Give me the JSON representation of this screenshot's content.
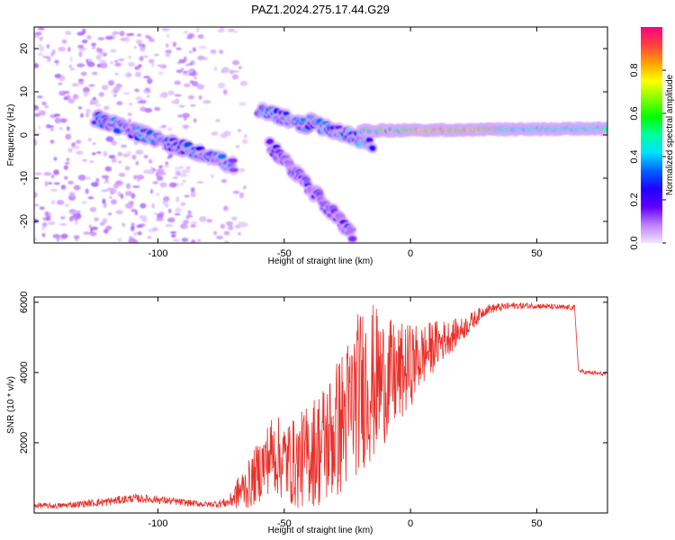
{
  "title": "PAZ1.2024.275.17.44.G29",
  "colors": {
    "snr_line": "#e8302a",
    "frame": "#000000",
    "colorbar_stops": [
      "#ff0080",
      "#ff4040",
      "#ffa000",
      "#ffff00",
      "#80ff00",
      "#00ff00",
      "#00ffa0",
      "#00e0ff",
      "#0060ff",
      "#2000ff",
      "#6000ff",
      "#c080ff",
      "#f0e6ff"
    ]
  },
  "chart_data": [
    {
      "type": "heatmap",
      "xlabel": "Height of straight line (km)",
      "ylabel": "Frequency (Hz)",
      "xlim": [
        -149,
        78
      ],
      "ylim": [
        -25,
        25
      ],
      "xticks": [
        -100,
        -50,
        0,
        50
      ],
      "yticks": [
        20,
        10,
        0,
        -10,
        -20
      ],
      "colorbar": {
        "label": "Normalized spectral amplitude",
        "range": [
          0,
          1
        ],
        "ticks": [
          "0.0",
          "0.2",
          "0.4",
          "0.6",
          "0.8"
        ],
        "tick_values": [
          0,
          0.2,
          0.4,
          0.6,
          0.8
        ]
      },
      "features": [
        {
          "kind": "band",
          "x_start": -125,
          "x_end": -70,
          "f_start": 4,
          "f_end": -7,
          "amplitude": 0.3
        },
        {
          "kind": "band",
          "x_start": -60,
          "x_end": -40,
          "f_start": 6,
          "f_end": 2,
          "amplitude": 0.3
        },
        {
          "kind": "band",
          "x_start": -56,
          "x_end": -23,
          "f_start": -2,
          "f_end": -23,
          "amplitude": 0.2
        },
        {
          "kind": "band",
          "x_start": -40,
          "x_end": -15,
          "f_start": 3,
          "f_end": -2,
          "amplitude": 0.35
        },
        {
          "kind": "band",
          "x_start": -20,
          "x_end": 78,
          "f_start": 1,
          "f_end": 1.5,
          "amplitude": 0.45
        }
      ]
    },
    {
      "type": "line",
      "xlabel": "Height of straight line (km)",
      "ylabel": "SNR (10 * v/v)",
      "xlim": [
        -149,
        78
      ],
      "ylim": [
        0,
        6150
      ],
      "xticks": [
        -100,
        -50,
        0,
        50
      ],
      "yticks": [
        2000,
        4000,
        6000
      ],
      "series": [
        {
          "x": [
            -149,
            -140,
            -130,
            -120,
            -110,
            -100,
            -90,
            -80,
            -72,
            -68,
            -64,
            -60,
            -55,
            -50,
            -45,
            -40,
            -35,
            -30,
            -25,
            -22,
            -18,
            -15,
            -10,
            -5,
            0,
            5,
            10,
            15,
            20,
            25,
            30,
            40,
            50,
            60,
            65,
            66,
            70,
            78
          ],
          "y": [
            220,
            200,
            260,
            320,
            420,
            380,
            300,
            240,
            300,
            600,
            800,
            1200,
            1700,
            1500,
            1400,
            1700,
            1900,
            2300,
            2800,
            3300,
            3700,
            3700,
            3800,
            3900,
            4200,
            4500,
            4800,
            5000,
            5200,
            5500,
            5800,
            5900,
            5900,
            5850,
            5850,
            4050,
            4000,
            3950
          ],
          "noise": [
            80,
            80,
            100,
            120,
            120,
            120,
            100,
            80,
            150,
            500,
            700,
            900,
            1100,
            1200,
            1300,
            1500,
            1800,
            2000,
            2200,
            2300,
            2400,
            2300,
            1800,
            1500,
            1200,
            900,
            700,
            500,
            350,
            250,
            150,
            100,
            80,
            80,
            80,
            60,
            60,
            60
          ]
        }
      ]
    }
  ]
}
